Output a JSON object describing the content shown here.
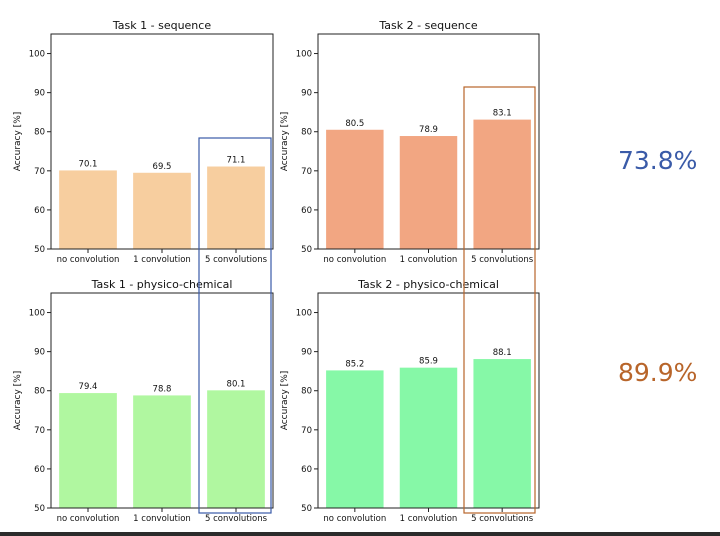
{
  "colors": {
    "blue_highlight": "#3A5BA8",
    "orange_highlight": "#B8652A",
    "task1_sequence_bar": "#F7CE9F",
    "task2_sequence_bar": "#F2A682",
    "task1_physchem_bar": "#B0F7A0",
    "task2_physchem_bar": "#86F8A7"
  },
  "highlights": {
    "task1_value": "73.8%",
    "task2_value": "89.9%"
  },
  "chart_data": [
    {
      "type": "bar",
      "title": "Task 1 - sequence",
      "ylabel": "Accuracy [%]",
      "xlabel": "",
      "categories": [
        "no convolution",
        "1 convolution",
        "5 convolutions"
      ],
      "values": [
        70.1,
        69.5,
        71.1
      ],
      "labels": [
        "70.1",
        "69.5",
        "71.1"
      ],
      "ylim": [
        50,
        105
      ],
      "yticks": [
        50,
        60,
        70,
        80,
        90,
        100
      ],
      "color": "#F7CE9F",
      "highlight_category": "5 convolutions",
      "highlight_color": "#3A5BA8"
    },
    {
      "type": "bar",
      "title": "Task 2 - sequence",
      "ylabel": "Accuracy [%]",
      "xlabel": "",
      "categories": [
        "no convolution",
        "1 convolution",
        "5 convolutions"
      ],
      "values": [
        80.5,
        78.9,
        83.1
      ],
      "labels": [
        "80.5",
        "78.9",
        "83.1"
      ],
      "ylim": [
        50,
        105
      ],
      "yticks": [
        50,
        60,
        70,
        80,
        90,
        100
      ],
      "color": "#F2A682",
      "highlight_category": "5 convolutions",
      "highlight_color": "#B8652A"
    },
    {
      "type": "bar",
      "title": "Task 1 - physico-chemical",
      "ylabel": "Accuracy [%]",
      "xlabel": "",
      "categories": [
        "no convolution",
        "1 convolution",
        "5 convolutions"
      ],
      "values": [
        79.4,
        78.8,
        80.1
      ],
      "labels": [
        "79.4",
        "78.8",
        "80.1"
      ],
      "ylim": [
        50,
        105
      ],
      "yticks": [
        50,
        60,
        70,
        80,
        90,
        100
      ],
      "color": "#B0F7A0",
      "highlight_category": "5 convolutions",
      "highlight_color": "#3A5BA8"
    },
    {
      "type": "bar",
      "title": "Task 2 - physico-chemical",
      "ylabel": "Accuracy [%]",
      "xlabel": "",
      "categories": [
        "no convolution",
        "1 convolution",
        "5 convolutions"
      ],
      "values": [
        85.2,
        85.9,
        88.1
      ],
      "labels": [
        "85.2",
        "85.9",
        "88.1"
      ],
      "ylim": [
        50,
        105
      ],
      "yticks": [
        50,
        60,
        70,
        80,
        90,
        100
      ],
      "color": "#86F8A7",
      "highlight_category": "5 convolutions",
      "highlight_color": "#B8652A"
    }
  ]
}
